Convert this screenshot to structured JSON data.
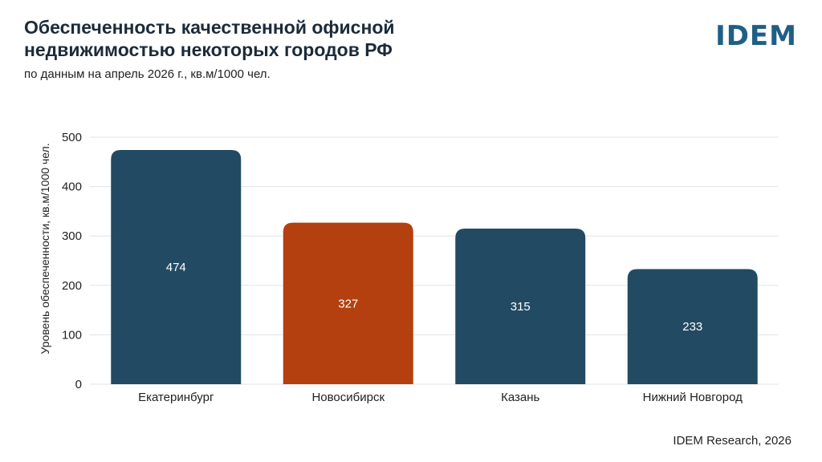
{
  "header": {
    "title_line1": "Обеспеченность качественной офисной",
    "title_line2": "недвижимостью некоторых городов РФ",
    "subtitle": "по данным на апрель 2026 г., кв.м/1000 чел.",
    "logo": "IDEM"
  },
  "footer": {
    "source": "IDEM Research, 2026"
  },
  "colors": {
    "primary_bar": "#234a63",
    "highlight_bar": "#b5400f",
    "gridline": "#e3e3e3",
    "logo": "#1f5f86"
  },
  "chart_data": {
    "type": "bar",
    "categories": [
      "Екатеринбург",
      "Новосибирск",
      "Казань",
      "Нижний Новгород"
    ],
    "values": [
      474,
      327,
      315,
      233
    ],
    "highlight_index": 1,
    "ylabel": "Уровень обеспеченности, кв.м/1000 чел.",
    "ylim": [
      0,
      500
    ],
    "yticks": [
      0,
      100,
      200,
      300,
      400,
      500
    ],
    "grid": true,
    "data_labels": [
      "474",
      "327",
      "315",
      "233"
    ]
  }
}
